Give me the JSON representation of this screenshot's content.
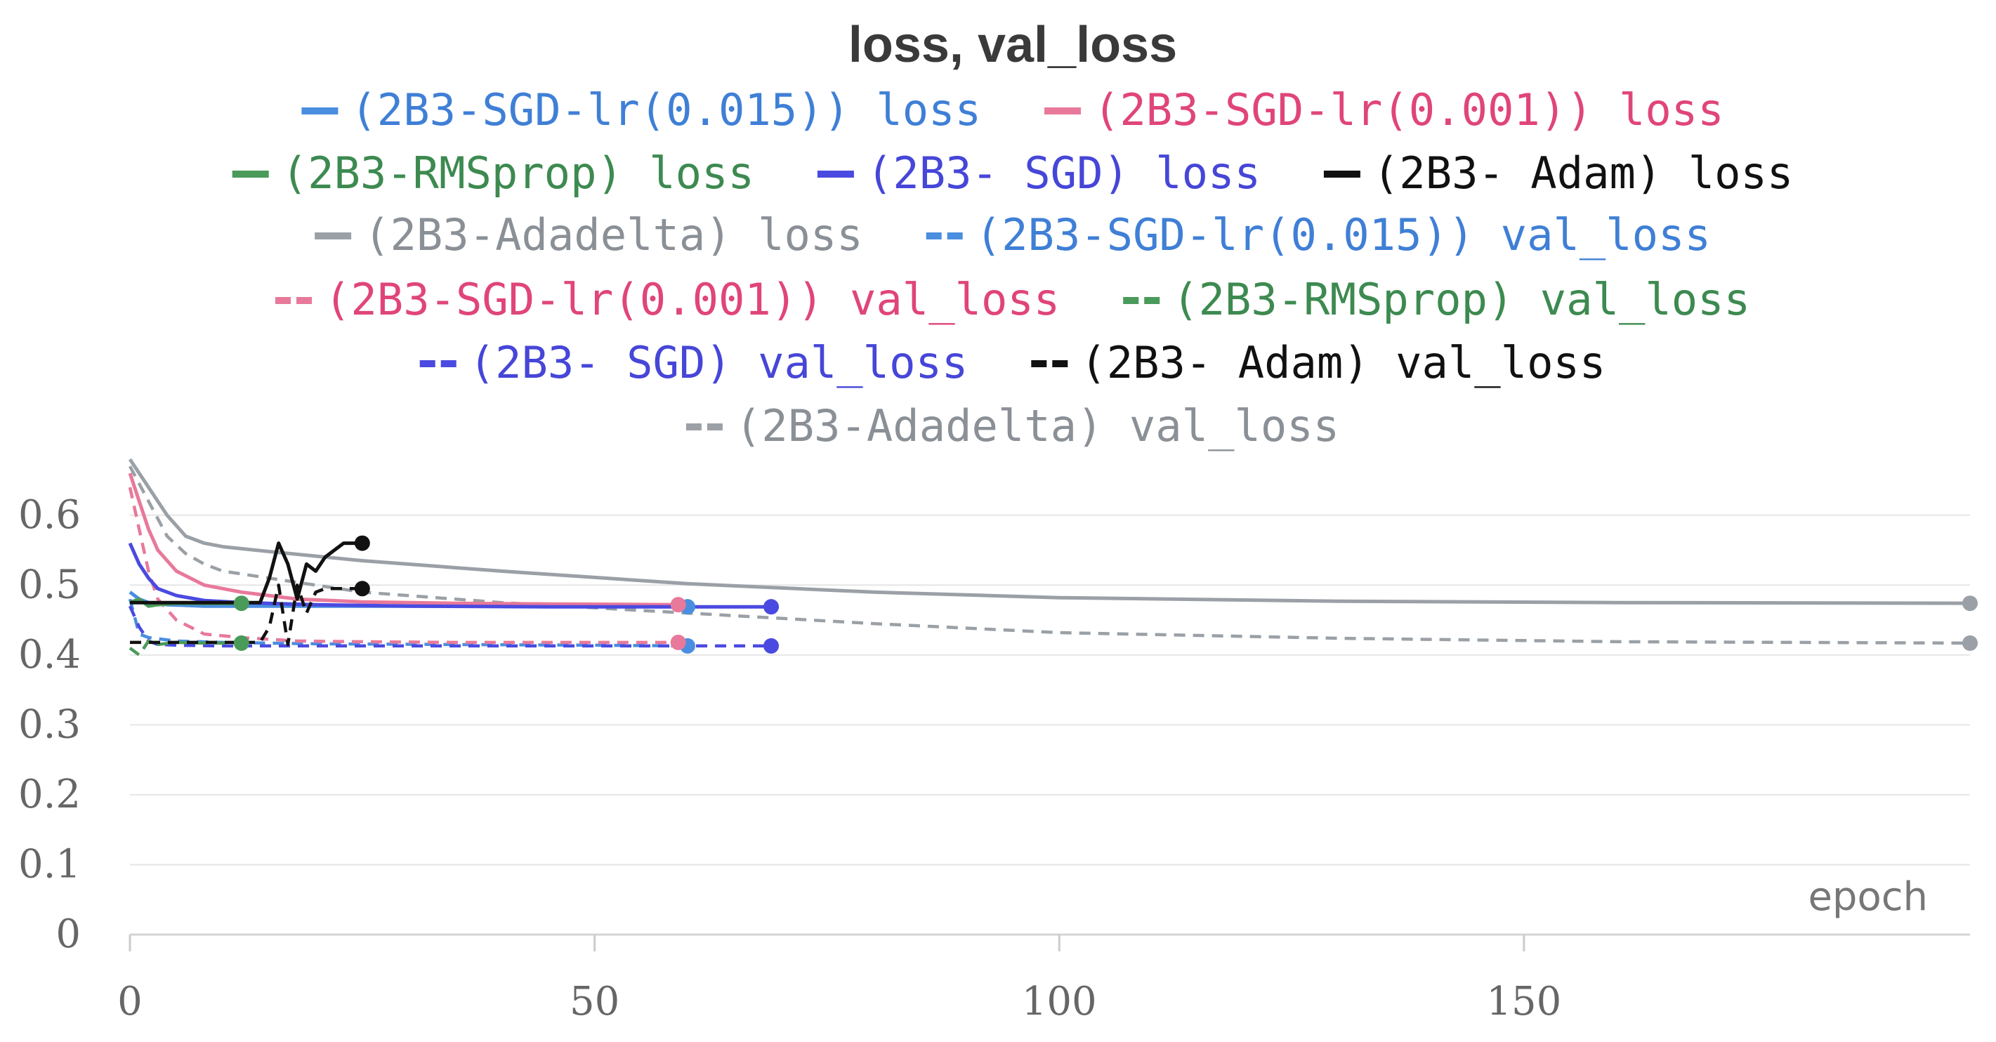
{
  "chart_data": {
    "type": "line",
    "title": "loss, val_loss",
    "xlabel": "epoch",
    "ylabel": "",
    "xlim": [
      0,
      198
    ],
    "ylim": [
      0,
      0.65
    ],
    "x_ticks": [
      "0",
      "50",
      "100",
      "150"
    ],
    "y_ticks": [
      "0",
      "0.1",
      "0.2",
      "0.3",
      "0.4",
      "0.5",
      "0.6"
    ],
    "grid": true,
    "legend_position": "top",
    "series": [
      {
        "name": "(2B3-SGD-lr(0.015)) loss",
        "color": "#4a8ee0",
        "dash": "solid",
        "x": [
          0,
          1,
          2,
          4,
          8,
          15,
          25,
          40,
          60
        ],
        "y": [
          0.49,
          0.48,
          0.475,
          0.472,
          0.47,
          0.47,
          0.47,
          0.47,
          0.469
        ]
      },
      {
        "name": "(2B3-SGD-lr(0.001)) loss",
        "color": "#e8799a",
        "dash": "solid",
        "x": [
          0,
          1,
          2,
          3,
          5,
          8,
          12,
          18,
          25,
          35,
          45,
          59
        ],
        "y": [
          0.66,
          0.62,
          0.58,
          0.55,
          0.52,
          0.5,
          0.49,
          0.48,
          0.476,
          0.474,
          0.473,
          0.472
        ]
      },
      {
        "name": "(2B3-RMSprop) loss",
        "color": "#4a9a5a",
        "dash": "solid",
        "x": [
          0,
          1,
          2,
          3,
          5,
          8,
          12
        ],
        "y": [
          0.475,
          0.48,
          0.47,
          0.472,
          0.474,
          0.474,
          0.474
        ]
      },
      {
        "name": "(2B3- SGD) loss",
        "color": "#4a4ae0",
        "dash": "solid",
        "x": [
          0,
          1,
          2,
          3,
          5,
          8,
          12,
          20,
          30,
          45,
          60,
          69
        ],
        "y": [
          0.56,
          0.53,
          0.51,
          0.495,
          0.485,
          0.478,
          0.475,
          0.472,
          0.47,
          0.469,
          0.469,
          0.469
        ]
      },
      {
        "name": "(2B3- Adam) loss",
        "color": "#111111",
        "dash": "solid",
        "x": [
          0,
          2,
          5,
          8,
          11,
          14,
          15,
          16,
          17,
          18,
          19,
          20,
          21,
          22,
          23,
          24,
          25
        ],
        "y": [
          0.475,
          0.475,
          0.475,
          0.475,
          0.475,
          0.475,
          0.51,
          0.56,
          0.53,
          0.48,
          0.53,
          0.52,
          0.54,
          0.55,
          0.56,
          0.56,
          0.56
        ]
      },
      {
        "name": "(2B3-Adadelta) loss",
        "color": "#9aa0a6",
        "dash": "solid",
        "x": [
          0,
          2,
          4,
          6,
          8,
          10,
          15,
          25,
          40,
          60,
          80,
          100,
          130,
          160,
          198
        ],
        "y": [
          0.68,
          0.64,
          0.6,
          0.57,
          0.56,
          0.555,
          0.548,
          0.535,
          0.52,
          0.502,
          0.49,
          0.482,
          0.477,
          0.475,
          0.474
        ]
      },
      {
        "name": "(2B3-SGD-lr(0.015)) val_loss",
        "color": "#4a8ee0",
        "dash": "dashed",
        "x": [
          0,
          1,
          2,
          5,
          10,
          20,
          35,
          50,
          60
        ],
        "y": [
          0.48,
          0.43,
          0.425,
          0.42,
          0.418,
          0.416,
          0.415,
          0.414,
          0.413
        ]
      },
      {
        "name": "(2B3-SGD-lr(0.001)) val_loss",
        "color": "#e8799a",
        "dash": "dashed",
        "x": [
          0,
          1,
          2,
          3,
          5,
          8,
          12,
          18,
          25,
          35,
          45,
          59
        ],
        "y": [
          0.64,
          0.58,
          0.52,
          0.48,
          0.45,
          0.43,
          0.425,
          0.42,
          0.419,
          0.418,
          0.418,
          0.418
        ]
      },
      {
        "name": "(2B3-RMSprop) val_loss",
        "color": "#4a9a5a",
        "dash": "dashed",
        "x": [
          0,
          1,
          2,
          3,
          5,
          8,
          12
        ],
        "y": [
          0.41,
          0.4,
          0.42,
          0.415,
          0.418,
          0.417,
          0.417
        ]
      },
      {
        "name": "(2B3- SGD) val_loss",
        "color": "#4a4ae0",
        "dash": "dashed",
        "x": [
          0,
          1,
          2,
          3,
          5,
          10,
          20,
          35,
          50,
          69
        ],
        "y": [
          0.47,
          0.44,
          0.42,
          0.415,
          0.414,
          0.413,
          0.413,
          0.413,
          0.413,
          0.413
        ]
      },
      {
        "name": "(2B3- Adam) val_loss",
        "color": "#111111",
        "dash": "dashed",
        "x": [
          0,
          2,
          5,
          8,
          11,
          14,
          15,
          16,
          17,
          18,
          19,
          20,
          21,
          22,
          23,
          24,
          25
        ],
        "y": [
          0.418,
          0.418,
          0.418,
          0.418,
          0.418,
          0.418,
          0.44,
          0.5,
          0.415,
          0.5,
          0.46,
          0.49,
          0.495,
          0.495,
          0.495,
          0.495,
          0.495
        ]
      },
      {
        "name": "(2B3-Adadelta) val_loss",
        "color": "#9aa0a6",
        "dash": "dashed",
        "x": [
          0,
          2,
          4,
          6,
          8,
          10,
          15,
          25,
          40,
          60,
          80,
          100,
          130,
          160,
          198
        ],
        "y": [
          0.67,
          0.62,
          0.57,
          0.545,
          0.53,
          0.52,
          0.51,
          0.49,
          0.475,
          0.46,
          0.445,
          0.432,
          0.424,
          0.419,
          0.417
        ]
      }
    ]
  }
}
